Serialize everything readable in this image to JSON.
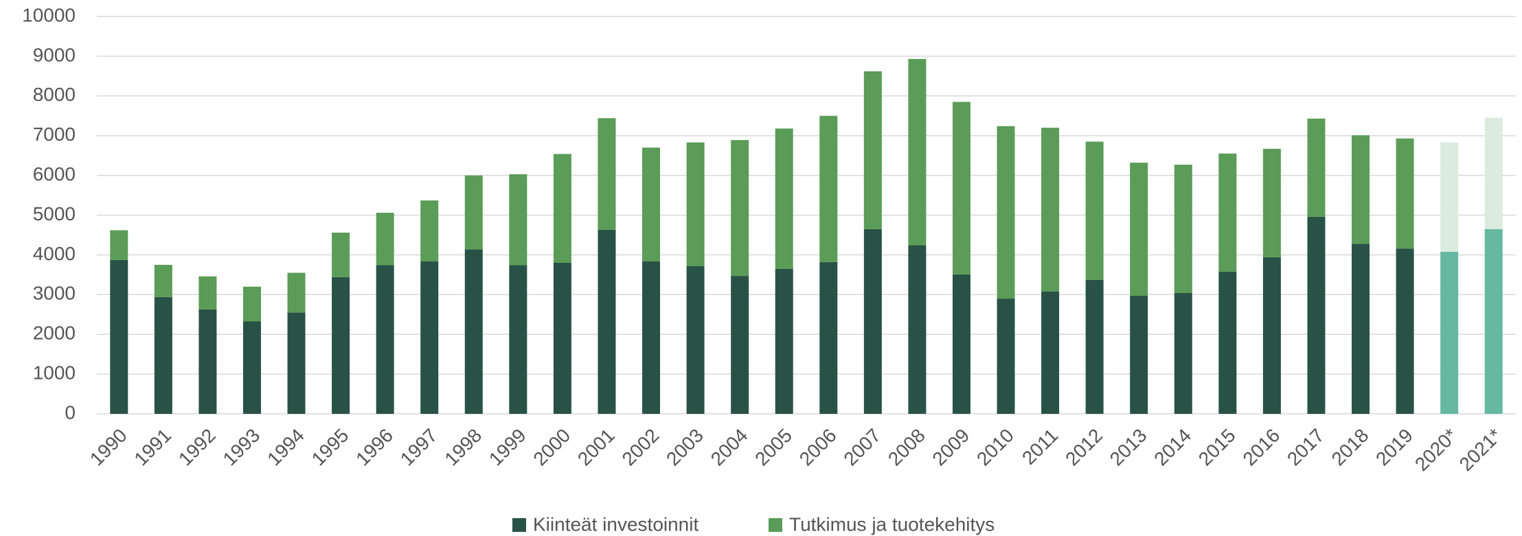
{
  "chart_data": {
    "type": "stacked_bar",
    "categories": [
      "1990",
      "1991",
      "1992",
      "1993",
      "1994",
      "1995",
      "1996",
      "1997",
      "1998",
      "1999",
      "2000",
      "2001",
      "2002",
      "2003",
      "2004",
      "2005",
      "2006",
      "2007",
      "2008",
      "2009",
      "2010",
      "2011",
      "2012",
      "2013",
      "2014",
      "2015",
      "2016",
      "2017",
      "2018",
      "2019",
      "2020*",
      "2021*"
    ],
    "series": [
      {
        "name": "Kiinteät investoinnit",
        "color": "#285245",
        "point_colors": [
          "#285245",
          "#285245",
          "#285245",
          "#285245",
          "#285245",
          "#285245",
          "#285245",
          "#285245",
          "#285245",
          "#285245",
          "#285245",
          "#285245",
          "#285245",
          "#285245",
          "#285245",
          "#285245",
          "#285245",
          "#285245",
          "#285245",
          "#285245",
          "#285245",
          "#285245",
          "#285245",
          "#285245",
          "#285245",
          "#285245",
          "#285245",
          "#285245",
          "#285245",
          "#285245",
          "#66b8a0",
          "#66b8a0"
        ],
        "values": [
          3870,
          2940,
          2630,
          2330,
          2550,
          3440,
          3740,
          3840,
          4140,
          3740,
          3800,
          4630,
          3840,
          3720,
          3470,
          3650,
          3820,
          4650,
          4240,
          3510,
          2900,
          3080,
          3370,
          2970,
          3040,
          3580,
          3940,
          4960,
          4280,
          4160,
          4080,
          4650
        ]
      },
      {
        "name": "Tutkimus ja tuotekehitys",
        "color": "#5a9c58",
        "point_colors": [
          "#5a9c58",
          "#5a9c58",
          "#5a9c58",
          "#5a9c58",
          "#5a9c58",
          "#5a9c58",
          "#5a9c58",
          "#5a9c58",
          "#5a9c58",
          "#5a9c58",
          "#5a9c58",
          "#5a9c58",
          "#5a9c58",
          "#5a9c58",
          "#5a9c58",
          "#5a9c58",
          "#5a9c58",
          "#5a9c58",
          "#5a9c58",
          "#5a9c58",
          "#5a9c58",
          "#5a9c58",
          "#5a9c58",
          "#5a9c58",
          "#5a9c58",
          "#5a9c58",
          "#5a9c58",
          "#5a9c58",
          "#5a9c58",
          "#5a9c58",
          "#dbecdf",
          "#dbecdf"
        ],
        "values": [
          750,
          810,
          830,
          870,
          1000,
          1120,
          1320,
          1530,
          1860,
          2290,
          2740,
          2810,
          2860,
          3110,
          3420,
          3530,
          3680,
          3970,
          4690,
          4340,
          4340,
          4120,
          3480,
          3350,
          3230,
          2970,
          2730,
          2470,
          2730,
          2770,
          2750,
          2800
        ]
      }
    ],
    "ylim": [
      0,
      10000
    ],
    "yticks": [
      0,
      1000,
      2000,
      3000,
      4000,
      5000,
      6000,
      7000,
      8000,
      9000,
      10000
    ],
    "grid": true,
    "legend": "bottom"
  }
}
